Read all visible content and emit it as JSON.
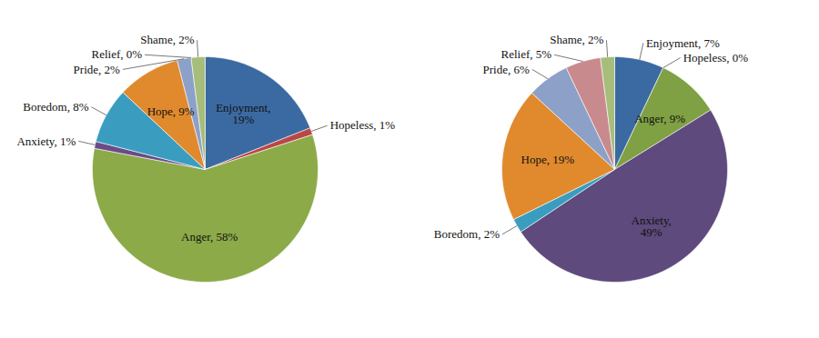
{
  "chart_data": [
    {
      "type": "pie",
      "categories": [
        "Enjoyment",
        "Hopeless",
        "Anger",
        "Anxiety",
        "Boredom",
        "Hope",
        "Pride",
        "Relief",
        "Shame"
      ],
      "values": [
        19,
        1,
        58,
        1,
        8,
        9,
        2,
        0,
        2
      ],
      "value_labels": [
        "Enjoyment, 19%",
        "Hopeless, 1%",
        "Anger, 58%",
        "Anxiety, 1%",
        "Boredom, 8%",
        "Hope, 9%",
        "Pride, 2%",
        "Relief, 0%",
        "Shame, 2%"
      ],
      "colors": [
        "#3b6aa3",
        "#b84745",
        "#8caa48",
        "#6a4b88",
        "#3a9dc0",
        "#e08a2d",
        "#8da1c8",
        "#d39392",
        "#a6bd7c"
      ],
      "data_labels": true
    },
    {
      "type": "pie",
      "categories": [
        "Enjoyment",
        "Hopeless",
        "Anger",
        "Anxiety",
        "Boredom",
        "Hope",
        "Pride",
        "Relief",
        "Shame"
      ],
      "values": [
        7,
        0,
        9,
        49,
        2,
        19,
        6,
        5,
        2
      ],
      "value_labels": [
        "Enjoyment, 7%",
        "Hopeless, 0%",
        "Anger, 9%",
        "Anxiety, 49%",
        "Boredom, 2%",
        "Hope, 19%",
        "Pride, 6%",
        "Relief, 5%",
        "Shame, 2%"
      ],
      "colors": [
        "#3b6aa3",
        "#b84745",
        "#7fa043",
        "#5e4a7c",
        "#3a9dc0",
        "#e08a2d",
        "#8da1c8",
        "#c98a8d",
        "#a6bd7c"
      ],
      "data_labels": true
    }
  ]
}
